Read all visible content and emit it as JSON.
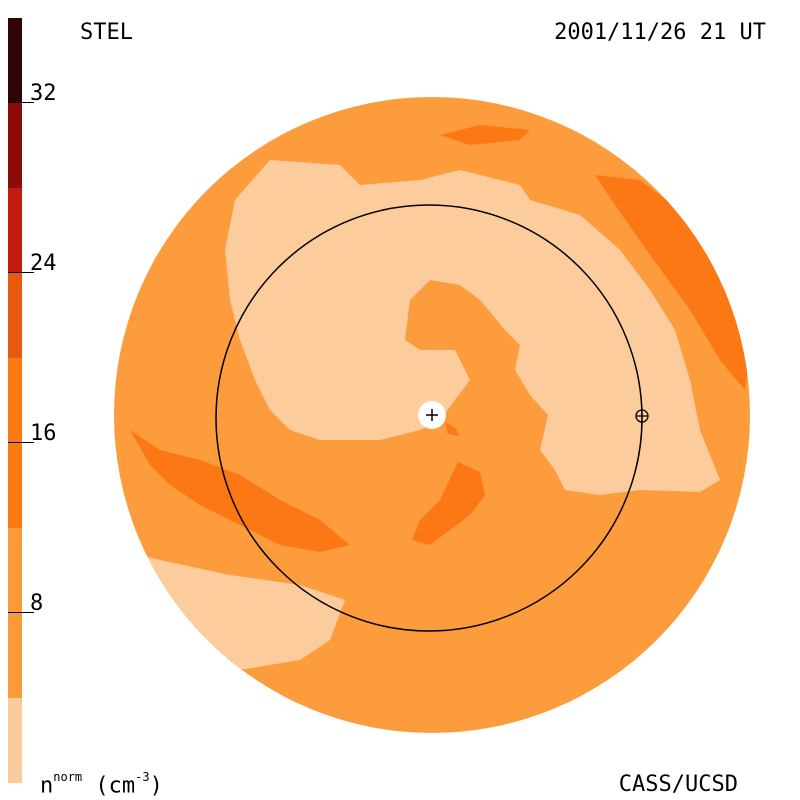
{
  "header": {
    "left_label": "STEL",
    "right_label": "2001/11/26 21 UT"
  },
  "footer": {
    "units_base": "n",
    "units_sup": "norm",
    "units_rest": "(cm",
    "units_exp": "-3",
    "units_close": ")",
    "credit": "CASS/UCSD"
  },
  "colorbar": {
    "ticks": [
      "32",
      "24",
      "16",
      "8"
    ],
    "colors": [
      "#fbcb9b",
      "#fc9a3a",
      "#fc7a10",
      "#e85a10",
      "#c01c10",
      "#8c0c08",
      "#5a0808",
      "#300404",
      "#1a0000"
    ]
  },
  "map": {
    "colors": {
      "base": "#fc9c3c",
      "light": "#fccc9c",
      "dark": "#fc7814",
      "sun": "#ffffff",
      "ring": "#000000"
    }
  }
}
